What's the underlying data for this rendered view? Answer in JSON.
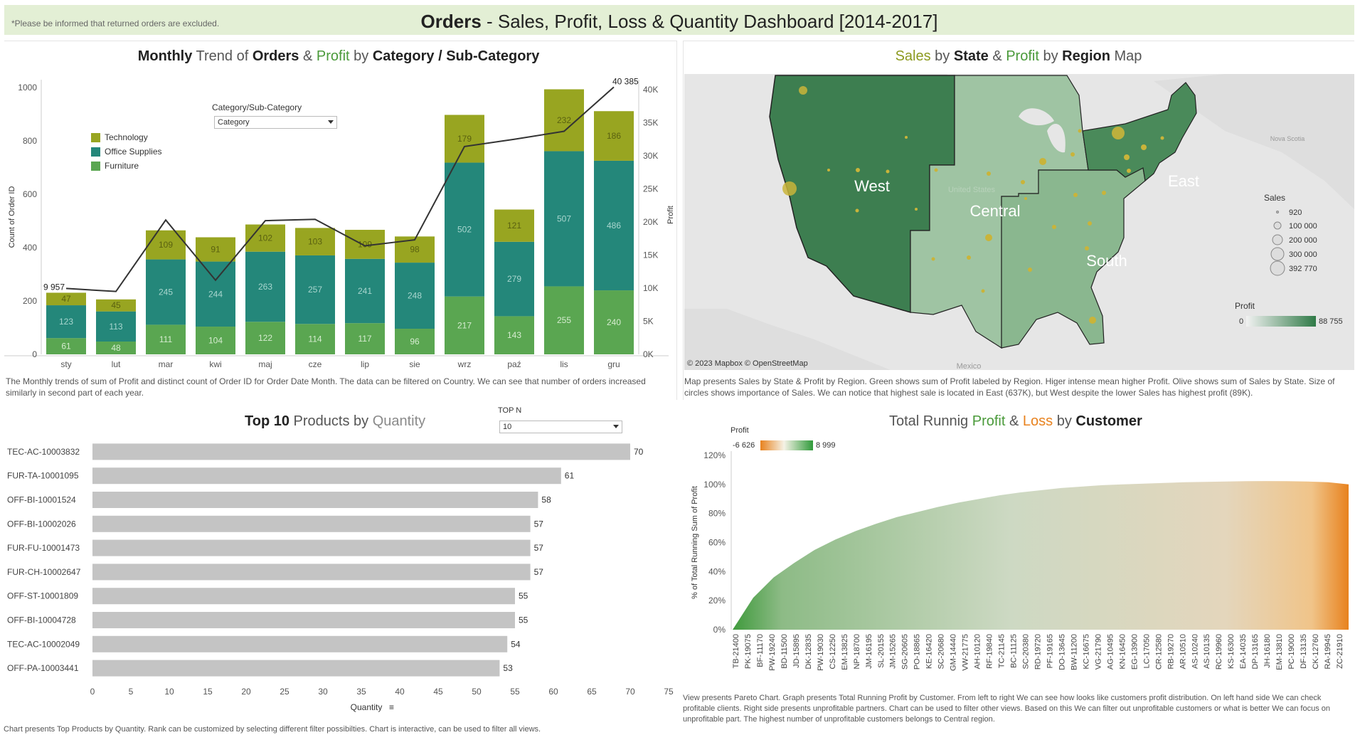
{
  "header": {
    "note": "*Please be informed that returned orders are excluded.",
    "title_bold": "Orders",
    "title_rest": " - Sales, Profit, Loss & Quantity Dashboard  [2014-2017]"
  },
  "colors": {
    "technology": "#98a521",
    "office_supplies": "#24877a",
    "furniture": "#5aa651",
    "line": "#333333",
    "map_west": "#3d7e50",
    "map_east": "#4a8a5a",
    "map_central": "#9fc4a3",
    "map_south": "#8ab78f",
    "bubble": "#c9b43a",
    "bar_grey": "#c4c4c4",
    "loss_orange": "#e8821e"
  },
  "panel1": {
    "title_parts": [
      "Monthly",
      " Trend of ",
      "Orders",
      " & ",
      "Profit",
      " by ",
      "Category / Sub-Category"
    ],
    "filter_label": "Category/Sub-Category",
    "filter_value": "Category",
    "legend": [
      "Technology",
      "Office Supplies",
      "Furniture"
    ],
    "description": "The Monthly trends of sum of Profit and distinct count of Order ID for Order Date Month. The data can be filtered on Country. We can see that number of orders increased similarly in second part of each year.",
    "first_profit_label": "9 957",
    "last_profit_label": "40 385"
  },
  "panel2": {
    "title_parts": [
      "Sales",
      " by ",
      "State",
      " & ",
      "Profit",
      " by ",
      "Region",
      " Map"
    ],
    "regions": [
      "West",
      "Central",
      "South",
      "East"
    ],
    "geo_labels": [
      "United States",
      "Mexico",
      "Nova Scotia"
    ],
    "sales_legend_title": "Sales",
    "sales_legend": [
      "920",
      "100 000",
      "200 000",
      "300 000",
      "392 770"
    ],
    "profit_legend_title": "Profit",
    "profit_min": "0",
    "profit_max": "88 755",
    "attribution": "© 2023 Mapbox © OpenStreetMap",
    "description": "Map presents Sales by State & Profit by Region. Green shows sum of Profit labeled by Region. Higer intense mean higher Profit.  Olive shows sum of Sales by State. Size of circles shows importance of Sales. We can notice that highest sale is located in East (637K), but West despite the lower Sales has highest profit (89K)."
  },
  "panel3": {
    "title_parts": [
      "Top 10",
      " Products by ",
      "Quantity"
    ],
    "topn_label": "TOP N",
    "topn_value": "10",
    "x_axis_title": "Quantity",
    "description": "Chart presents Top Products by Quantity. Rank can be customized by selecting different filter possibilties. Chart is interactive, can be used to filter all views."
  },
  "panel4": {
    "title_parts": [
      "Total Runnig ",
      "Profit",
      " & ",
      "Loss",
      " by ",
      "Customer"
    ],
    "legend_title": "Profit",
    "legend_min": "-6 626",
    "legend_max": "8 999",
    "y_axis_title": "% of Total Running Sum of Profit",
    "description": "View presents Pareto Chart. Graph presents Total Running Profit by Customer. From left to right We can see how looks like customers profit distribution. On left hand side We can check profitable clients. Right side presents  unprofitable partners. Chart can be used to filter other views. Based on this We can filter out unprofitable customers or what is better We can focus on unprofitable part. The highest number of unprofitable customers belongs to Central region."
  },
  "chart_data": [
    {
      "type": "bar",
      "categories": [
        "sty",
        "lut",
        "mar",
        "kwi",
        "maj",
        "cze",
        "lip",
        "sie",
        "wrz",
        "paź",
        "lis",
        "gru"
      ],
      "series": [
        {
          "name": "Furniture",
          "values": [
            61,
            48,
            111,
            104,
            122,
            114,
            117,
            96,
            217,
            143,
            255,
            240
          ]
        },
        {
          "name": "Office Supplies",
          "values": [
            123,
            113,
            245,
            244,
            263,
            257,
            241,
            248,
            502,
            279,
            507,
            486
          ]
        },
        {
          "name": "Technology",
          "values": [
            47,
            45,
            109,
            91,
            102,
            103,
            109,
            98,
            179,
            121,
            232,
            186
          ]
        }
      ],
      "line_series": {
        "name": "Profit",
        "values": [
          9957,
          9500,
          20300,
          11200,
          20200,
          20400,
          16400,
          17300,
          31400,
          32500,
          33700,
          40385
        ]
      },
      "ylabel": "Count of Order ID",
      "y2label": "Profit",
      "yticks": [
        0,
        200,
        400,
        600,
        800,
        1000
      ],
      "y2ticks": [
        "0K",
        "5K",
        "10K",
        "15K",
        "20K",
        "25K",
        "30K",
        "35K",
        "40K"
      ],
      "ylim": [
        0,
        1030
      ],
      "y2lim": [
        0,
        41500
      ],
      "stack_order": [
        "Furniture",
        "Office Supplies",
        "Technology"
      ]
    },
    {
      "type": "bar",
      "orientation": "horizontal",
      "categories": [
        "TEC-AC-10003832",
        "FUR-TA-10001095",
        "OFF-BI-10001524",
        "OFF-BI-10002026",
        "FUR-FU-10001473",
        "FUR-CH-10002647",
        "OFF-ST-10001809",
        "OFF-BI-10004728",
        "TEC-AC-10002049",
        "OFF-PA-10003441"
      ],
      "values": [
        70,
        61,
        58,
        57,
        57,
        57,
        55,
        55,
        54,
        53
      ],
      "xlabel": "Quantity",
      "xticks": [
        0,
        5,
        10,
        15,
        20,
        25,
        30,
        35,
        40,
        45,
        50,
        55,
        60,
        65,
        70,
        75
      ],
      "xlim": [
        0,
        75
      ]
    },
    {
      "type": "area",
      "ylabel": "% of Total Running Sum of Profit",
      "yticks": [
        "0%",
        "20%",
        "40%",
        "60%",
        "80%",
        "100%",
        "120%"
      ],
      "ylim": [
        0,
        1.2
      ],
      "x_tick_labels": [
        "TB-21400",
        "PK-19075",
        "BF-11170",
        "PW-19240",
        "BD-11500",
        "JD-15895",
        "DK-12835",
        "PW-19030",
        "CS-12250",
        "EM-13825",
        "NP-18700",
        "JM-16195",
        "SL-20155",
        "JM-15265",
        "SG-20605",
        "PO-18865",
        "KE-16420",
        "SC-20680",
        "GM-14440",
        "VW-21775",
        "AH-10120",
        "RF-19840",
        "TC-21145",
        "BC-11125",
        "SC-20380",
        "RD-19720",
        "PF-19165",
        "DO-13645",
        "BW-11200",
        "KC-16675",
        "VG-21790",
        "AG-10495",
        "KN-16450",
        "EG-13900",
        "LC-17050",
        "CR-12580",
        "RB-19270",
        "AR-10510",
        "AS-10240",
        "AS-10135",
        "RC-19960",
        "KS-16300",
        "EA-14035",
        "DP-13165",
        "JH-16180",
        "EM-13810",
        "PC-19000",
        "DF-13135",
        "CK-12760",
        "RA-19945",
        "ZC-21910"
      ],
      "curve": [
        0.0,
        0.22,
        0.36,
        0.46,
        0.55,
        0.62,
        0.68,
        0.73,
        0.775,
        0.81,
        0.845,
        0.875,
        0.9,
        0.925,
        0.945,
        0.96,
        0.975,
        0.985,
        0.995,
        1.0,
        1.005,
        1.01,
        1.015,
        1.018,
        1.02,
        1.022,
        1.023,
        1.022,
        1.02,
        1.015,
        1.0
      ]
    }
  ]
}
